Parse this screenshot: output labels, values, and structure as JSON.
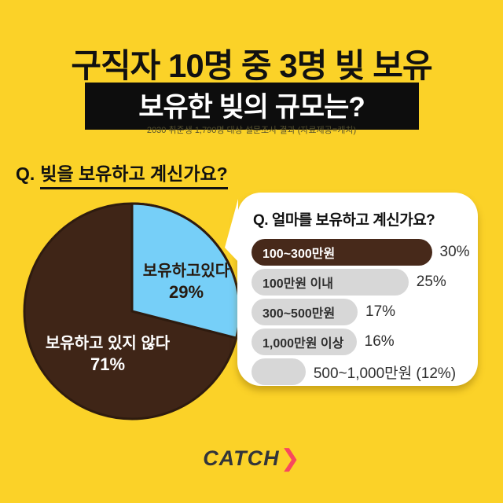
{
  "colors": {
    "background": "#FBD228",
    "pie_no": "#3F2517",
    "pie_yes": "#76CFF8",
    "pie_stroke": "#2E1B0F",
    "bar_highlight": "#47291A",
    "bar_gray": "#D7D7D7",
    "band_bg": "#0D0D0D",
    "logo_arrow": "#F8485E"
  },
  "header": {
    "title": "구직자 10명 중 3명 빚 보유",
    "band_title": "보유한 빚의 규모는?",
    "subtitle": "2030 취준생 1,790명 대상 설문조사 결과 (자료제공=캐치)"
  },
  "pie_section": {
    "question_prefix": "Q.",
    "question_text": "빚을 보유하고 계신가요?",
    "slice_yes_label": "보유하고있다",
    "slice_yes_pct": "29%",
    "slice_no_label": "보유하고 있지 않다",
    "slice_no_pct": "71%"
  },
  "panel": {
    "question": "Q. 얼마를 보유하고 계신가요?",
    "bars": [
      {
        "label": "100~300만원",
        "pct": "30%",
        "width_pct": 85,
        "variant": "brown"
      },
      {
        "label": "100만원 이내",
        "pct": "25%",
        "width_pct": 74,
        "variant": "gray"
      },
      {
        "label": "300~500만원",
        "pct": "17%",
        "width_pct": 50,
        "variant": "gray"
      },
      {
        "label": "1,000만원 이상",
        "pct": "16%",
        "width_pct": 49.5,
        "variant": "gray"
      },
      {
        "label": "",
        "pct": "",
        "width_pct": 25.5,
        "variant": "gray",
        "outside_label": "500~1,000만원 (12%)"
      }
    ]
  },
  "footer": {
    "logo_text": "CATCH",
    "logo_arrow": "❯"
  },
  "chart_data": [
    {
      "type": "pie",
      "title": "Q. 빚을 보유하고 계신가요?",
      "labels": [
        "보유하고 있지 않다",
        "보유하고있다"
      ],
      "values": [
        71,
        29
      ],
      "unit": "%",
      "colors": [
        "#3F2517",
        "#76CFF8"
      ],
      "start_angle_deg": -90,
      "direction": "clockwise",
      "notes": "29% slice starts at 12 o'clock going clockwise; dark outline on all edges"
    },
    {
      "type": "bar",
      "orientation": "horizontal",
      "title": "Q. 얼마를 보유하고 계신가요?",
      "categories": [
        "100~300만원",
        "100만원 이내",
        "300~500만원",
        "1,000만원 이상",
        "500~1,000만원"
      ],
      "values": [
        30,
        25,
        17,
        16,
        12
      ],
      "unit": "%",
      "highlight_index": 0,
      "legend": "none",
      "notes": "top bar dark brown with white label; others light gray; last bar label drawn outside"
    }
  ]
}
